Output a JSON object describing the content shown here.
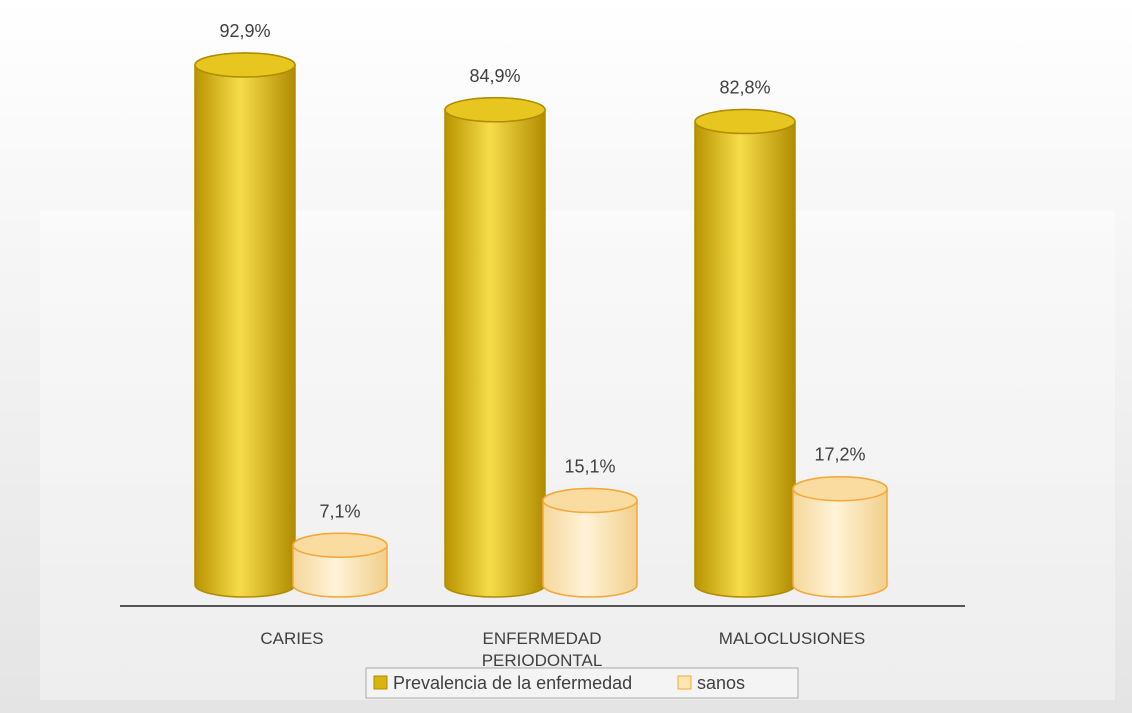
{
  "chart_data": {
    "type": "bar",
    "categories": [
      "CARIES",
      "ENFERMEDAD PERIODONTAL",
      "MALOCLUSIONES"
    ],
    "series": [
      {
        "name": "Prevalencia de la enfermedad",
        "color": "#d9b310",
        "values": [
          92.9,
          84.9,
          82.8
        ],
        "value_labels": [
          "92,9%",
          "84,9%",
          "82,8%"
        ]
      },
      {
        "name": "sanos",
        "color": "#fde6b0",
        "values": [
          7.1,
          15.1,
          17.2
        ],
        "value_labels": [
          "7,1%",
          "15,1%",
          "17,2%"
        ]
      }
    ],
    "legend": "bottom"
  }
}
